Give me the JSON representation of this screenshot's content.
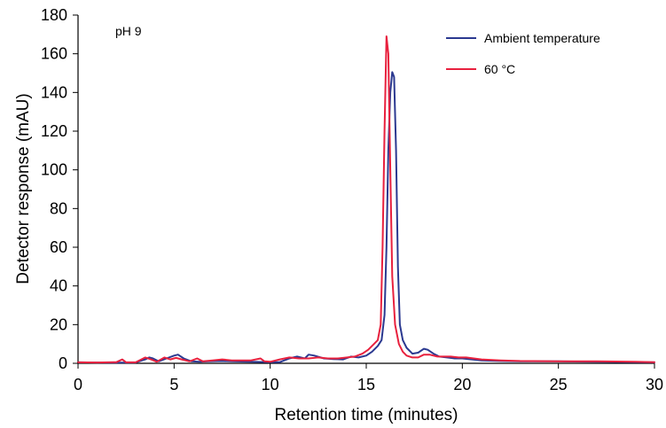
{
  "chart_data": {
    "type": "line",
    "title": "",
    "xlabel": "Retention time (minutes)",
    "ylabel": "Detector response (mAU)",
    "xlim": [
      0,
      30
    ],
    "ylim": [
      0,
      180
    ],
    "x_ticks": [
      0,
      5,
      10,
      15,
      20,
      25,
      30
    ],
    "y_ticks": [
      0,
      20,
      40,
      60,
      80,
      100,
      120,
      140,
      160,
      180
    ],
    "x_tick_labels": [
      "0",
      "5",
      "10",
      "15",
      "20",
      "25",
      "30"
    ],
    "y_tick_labels": [
      "0",
      "20",
      "40",
      "60",
      "80",
      "100",
      "120",
      "140",
      "160",
      "180"
    ],
    "grid": false,
    "legend_position": "top-right",
    "annotation": "pH 9",
    "series": [
      {
        "name": "Ambient temperature",
        "color": "#2b3990",
        "x": [
          0,
          1,
          2,
          3,
          3.5,
          3.7,
          3.9,
          4.2,
          4.6,
          5.0,
          5.2,
          5.5,
          5.9,
          6.3,
          6.8,
          7.5,
          8.0,
          9.0,
          10.0,
          10.5,
          11.0,
          11.4,
          11.8,
          12.0,
          12.3,
          12.8,
          13.3,
          13.8,
          14.2,
          14.6,
          15.0,
          15.3,
          15.6,
          15.8,
          15.95,
          16.05,
          16.15,
          16.25,
          16.35,
          16.45,
          16.55,
          16.65,
          16.75,
          16.9,
          17.1,
          17.4,
          17.7,
          18.0,
          18.2,
          18.5,
          18.8,
          19.2,
          19.6,
          20.0,
          20.5,
          21.0,
          22.0,
          23.0,
          25.0,
          27.0,
          29.0,
          30.0
        ],
        "y": [
          0.5,
          0.4,
          0.3,
          0.4,
          2.0,
          3.0,
          2.5,
          1.0,
          2.5,
          4.0,
          4.5,
          2.5,
          1.0,
          0.8,
          1.0,
          1.2,
          1.0,
          0.8,
          0.6,
          0.6,
          2.5,
          3.5,
          2.5,
          4.5,
          4.0,
          2.5,
          2.2,
          2.0,
          3.5,
          3.0,
          4.0,
          6.0,
          9.0,
          12.0,
          25.0,
          60.0,
          110.0,
          140.0,
          150.5,
          148.0,
          110.0,
          50.0,
          20.0,
          12.0,
          8.0,
          5.0,
          5.5,
          7.5,
          7.0,
          5.0,
          3.5,
          3.0,
          2.5,
          2.5,
          2.0,
          1.5,
          1.2,
          1.0,
          1.0,
          0.8,
          0.6,
          0.5
        ]
      },
      {
        "name": "60 °C",
        "color": "#e8213e",
        "x": [
          0,
          1,
          2,
          2.3,
          2.5,
          3.0,
          3.5,
          3.8,
          4.1,
          4.5,
          4.8,
          5.1,
          5.4,
          5.8,
          6.2,
          6.5,
          7.0,
          7.5,
          8.0,
          9.0,
          9.5,
          9.7,
          10.0,
          10.5,
          11.0,
          11.5,
          12.0,
          12.5,
          13.0,
          13.5,
          14.0,
          14.4,
          14.8,
          15.1,
          15.4,
          15.6,
          15.75,
          15.85,
          15.95,
          16.05,
          16.15,
          16.25,
          16.35,
          16.5,
          16.7,
          16.9,
          17.1,
          17.4,
          17.7,
          18.0,
          18.3,
          18.7,
          19.0,
          19.4,
          19.8,
          20.2,
          20.6,
          21.0,
          22.0,
          23.0,
          25.0,
          27.0,
          29.0,
          30.0
        ],
        "y": [
          0.5,
          0.4,
          0.6,
          2.0,
          0.5,
          0.5,
          3.0,
          2.0,
          0.8,
          3.0,
          2.0,
          2.8,
          2.0,
          1.0,
          2.5,
          1.0,
          1.5,
          2.0,
          1.5,
          1.5,
          2.5,
          1.0,
          0.8,
          2.0,
          3.0,
          2.5,
          2.5,
          3.0,
          2.5,
          2.5,
          3.0,
          3.5,
          5.0,
          7.0,
          10.0,
          12.0,
          20.0,
          60.0,
          120.0,
          169.0,
          160.0,
          100.0,
          45.0,
          20.0,
          10.0,
          6.0,
          4.0,
          3.0,
          3.0,
          4.5,
          4.5,
          3.5,
          3.5,
          3.5,
          3.0,
          3.0,
          2.5,
          2.0,
          1.5,
          1.2,
          1.0,
          1.0,
          0.8,
          0.6
        ]
      }
    ]
  }
}
